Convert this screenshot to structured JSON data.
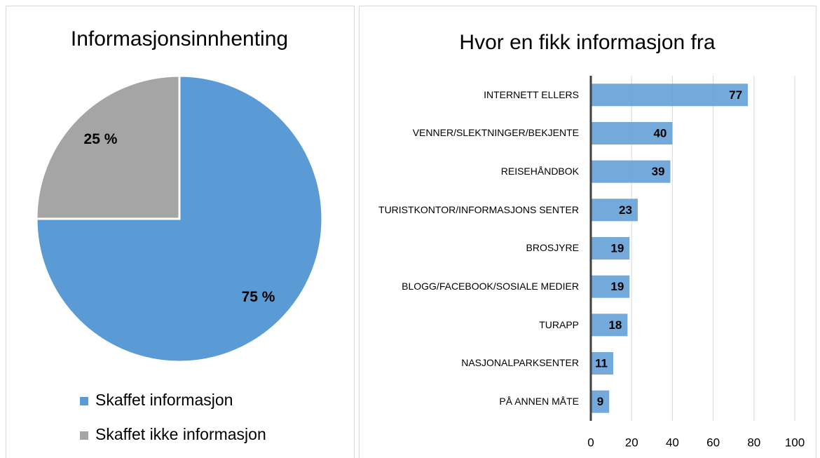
{
  "chart_data": [
    {
      "type": "pie",
      "title": "Informasjonsinnhenting",
      "categories": [
        "Skaffet informasjon",
        "Skaffet ikke informasjon"
      ],
      "values": [
        75,
        25
      ],
      "value_labels": [
        "75 %",
        "25 %"
      ],
      "colors": [
        "#5b9bd5",
        "#a5a5a5"
      ],
      "legend": "bottom"
    },
    {
      "type": "hbar",
      "title": "Hvor en fikk informasjon fra",
      "categories": [
        "INTERNETT ELLERS",
        "VENNER/SLEKTNINGER/BEKJENTE",
        "REISEHÅNDBOK",
        "TURISTKONTOR/INFORMASJONS SENTER",
        "BROSJYRE",
        "BLOGG/FACEBOOK/SOSIALE MEDIER",
        "TURAPP",
        "NASJONALPARKSENTER",
        "PÅ ANNEN MÅTE"
      ],
      "values": [
        77,
        40,
        39,
        23,
        19,
        19,
        18,
        11,
        9
      ],
      "color": "#5b9bd5",
      "xlim": [
        0,
        100
      ],
      "xticks": [
        0,
        20,
        40,
        60,
        80,
        100
      ],
      "grid": true
    }
  ]
}
